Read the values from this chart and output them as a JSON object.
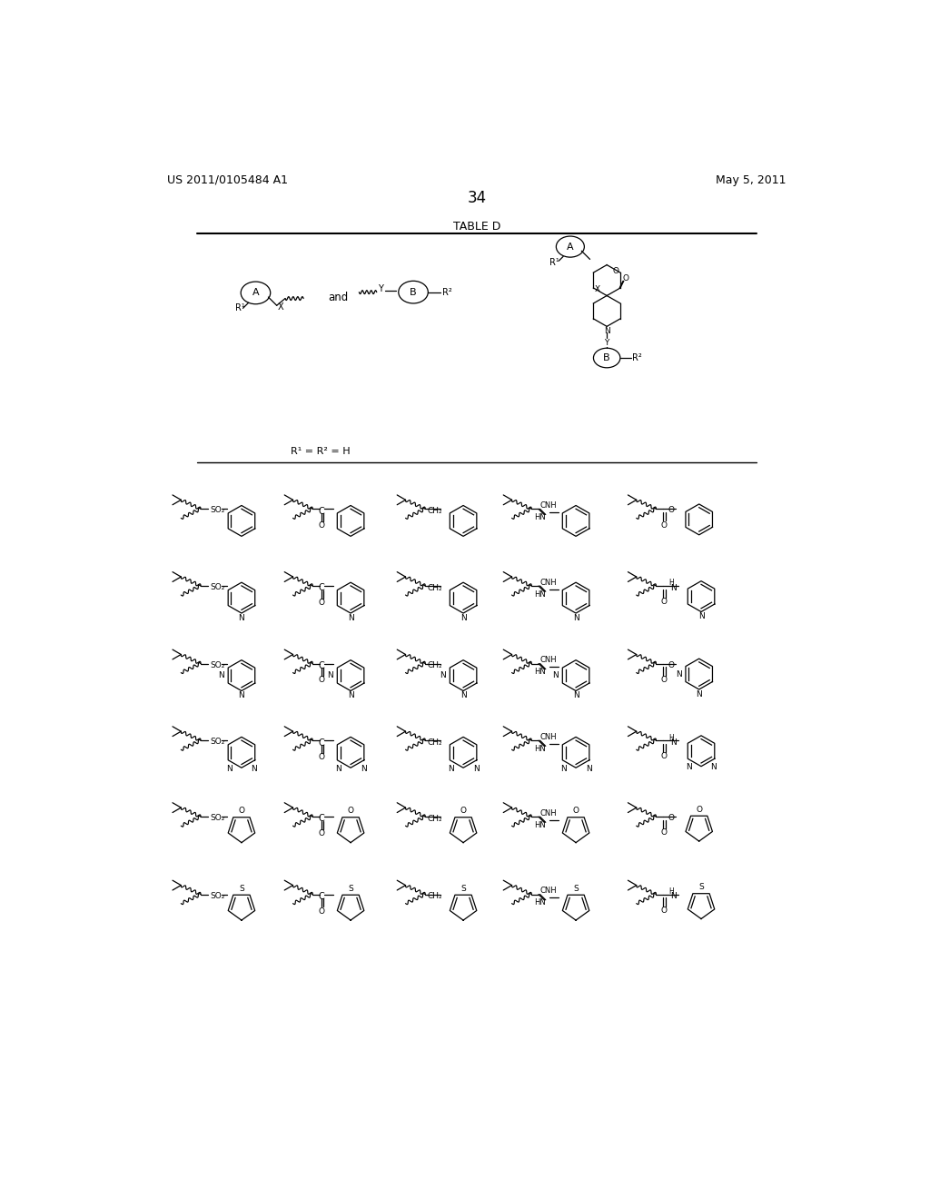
{
  "title_left": "US 2011/0105484 A1",
  "title_right": "May 5, 2011",
  "page_number": "34",
  "table_title": "TABLE D",
  "r_condition": "R¹ = R² = H",
  "bg_color": "#ffffff",
  "text_color": "#000000"
}
